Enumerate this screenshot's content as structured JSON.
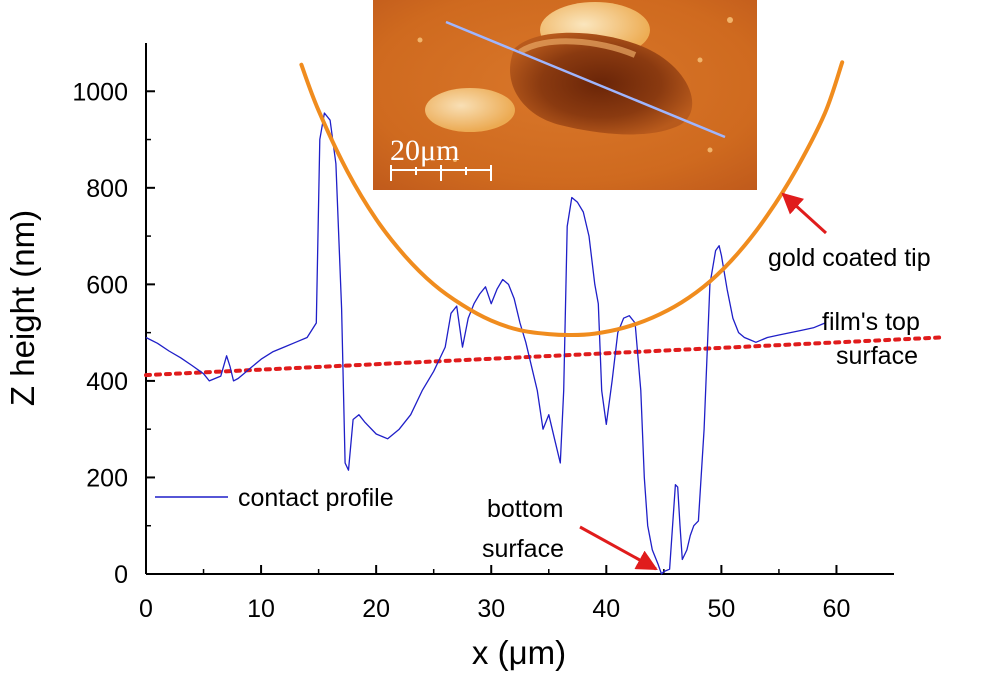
{
  "chart_data": {
    "type": "line",
    "xlabel": "x (μm)",
    "ylabel": "Z height (nm)",
    "xlim": [
      0,
      65
    ],
    "ylim": [
      0,
      1100
    ],
    "xticks": [
      0,
      10,
      20,
      30,
      40,
      50,
      60
    ],
    "yticks": [
      0,
      200,
      400,
      600,
      800,
      1000
    ],
    "grid": false,
    "legend_position": "bottom-left",
    "series": [
      {
        "name": "contact profile",
        "color": "#1f1fc8",
        "x": [
          0,
          1,
          2,
          3,
          4,
          5,
          5.5,
          6,
          6.5,
          7,
          7.3,
          7.6,
          8,
          8.5,
          9,
          10,
          11,
          12,
          13,
          14,
          14.8,
          15.1,
          15.5,
          16,
          16.5,
          17,
          17.3,
          17.6,
          18,
          18.5,
          19,
          20,
          21,
          22,
          23,
          24,
          25,
          26,
          26.5,
          27,
          27.5,
          28,
          28.5,
          29,
          29.5,
          30,
          30.5,
          31,
          31.5,
          32,
          32.5,
          33,
          34,
          34.5,
          35,
          35.5,
          36,
          36.3,
          36.6,
          37,
          37.5,
          38,
          38.5,
          39,
          39.3,
          39.6,
          40,
          40.5,
          41,
          41.5,
          42,
          42.5,
          43,
          43.3,
          43.6,
          44,
          44.5,
          44.8,
          45,
          45.5,
          46,
          46.2,
          46.4,
          46.6,
          47,
          47.3,
          47.6,
          48,
          48.5,
          49,
          49.5,
          49.8,
          50,
          50.5,
          51,
          51.5,
          52,
          52.5,
          53,
          54,
          55,
          56,
          57,
          58,
          59
        ],
        "y": [
          490,
          478,
          462,
          448,
          432,
          415,
          400,
          405,
          410,
          452,
          430,
          400,
          405,
          415,
          425,
          445,
          460,
          470,
          480,
          490,
          520,
          900,
          955,
          940,
          850,
          550,
          230,
          215,
          320,
          330,
          315,
          290,
          280,
          300,
          330,
          380,
          420,
          470,
          540,
          555,
          470,
          530,
          560,
          580,
          595,
          560,
          590,
          610,
          600,
          570,
          520,
          480,
          380,
          300,
          330,
          280,
          230,
          380,
          720,
          780,
          770,
          750,
          700,
          600,
          560,
          380,
          310,
          400,
          500,
          530,
          535,
          520,
          380,
          200,
          100,
          50,
          20,
          0,
          5,
          10,
          185,
          180,
          100,
          30,
          50,
          80,
          100,
          110,
          300,
          600,
          670,
          680,
          660,
          590,
          530,
          500,
          490,
          485,
          480,
          490,
          495,
          500,
          505,
          510,
          520
        ]
      },
      {
        "name": "film's top surface",
        "color": "#e01c1c",
        "style": "dotted",
        "x": [
          0,
          69
        ],
        "y": [
          412,
          490
        ]
      },
      {
        "name": "gold coated tip",
        "color": "#f08c1e",
        "x": [
          13.5,
          15,
          17.5,
          20,
          22.5,
          25,
          27.5,
          30,
          32.5,
          35,
          37,
          39,
          41.5,
          44,
          46.5,
          49,
          51.5,
          54,
          56.5,
          59,
          60.5
        ],
        "y": [
          1055,
          960,
          834,
          735,
          659,
          600,
          557,
          525,
          505,
          497,
          495,
          498,
          510,
          531,
          562,
          606,
          666,
          743,
          838,
          955,
          1060
        ]
      }
    ],
    "annotations": {
      "tip_label": "gold coated tip",
      "film_label_line1": "film's top",
      "film_label_line2": "surface",
      "bottom_label_line1": "bottom",
      "bottom_label_line2": "surface"
    },
    "inset": {
      "scale_bar_label": "20μm"
    },
    "colors": {
      "axis": "#000000",
      "arrow": "#e01c1c",
      "inset_scan_line": "#9fb6ff"
    }
  }
}
